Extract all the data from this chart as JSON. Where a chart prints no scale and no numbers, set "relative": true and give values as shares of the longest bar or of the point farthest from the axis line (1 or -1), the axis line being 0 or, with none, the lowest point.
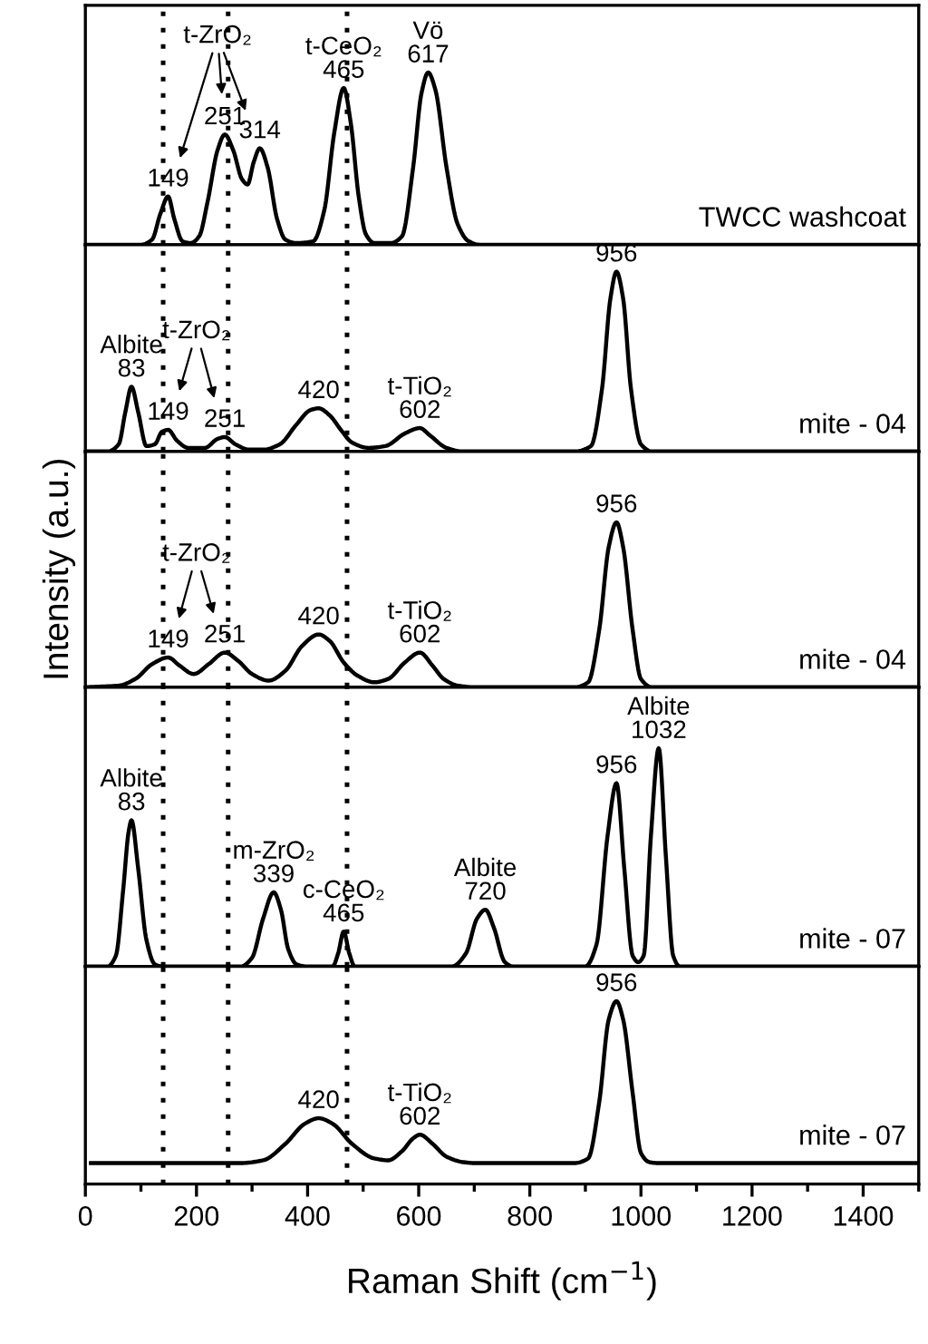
{
  "chart_data": [
    {
      "type": "line",
      "relative": true,
      "xlim": [
        0,
        1500
      ],
      "tick_labels": false,
      "x": [
        0,
        100,
        120,
        135,
        149,
        160,
        175,
        190,
        205,
        220,
        238,
        251,
        266,
        282,
        292,
        303,
        314,
        328,
        345,
        360,
        380,
        410,
        430,
        448,
        465,
        478,
        492,
        505,
        520,
        550,
        570,
        590,
        605,
        617,
        630,
        650,
        670,
        690,
        710,
        800,
        1000,
        1500
      ],
      "series": [
        {
          "name": "TWCC washcoat",
          "color": "#000000",
          "values": [
            0,
            0,
            0.03,
            0.18,
            0.28,
            0.15,
            0.02,
            0.01,
            0.05,
            0.25,
            0.55,
            0.64,
            0.55,
            0.38,
            0.35,
            0.48,
            0.56,
            0.45,
            0.15,
            0.03,
            0.01,
            0.02,
            0.2,
            0.65,
            0.91,
            0.7,
            0.28,
            0.06,
            0.01,
            0.01,
            0.05,
            0.45,
            0.88,
            1.0,
            0.9,
            0.45,
            0.12,
            0.02,
            0,
            0,
            0,
            0
          ]
        }
      ],
      "ref_lines": [
        {
          "axis": "x",
          "value": 140,
          "color": "#000000",
          "line_style": "dotted"
        },
        {
          "axis": "x",
          "value": 257,
          "color": "#000000",
          "line_style": "dotted"
        },
        {
          "axis": "x",
          "value": 471,
          "color": "#000000",
          "line_style": "dotted"
        }
      ],
      "annotations": [
        {
          "text": "149",
          "x": 149,
          "y": 0.28
        },
        {
          "text": "251",
          "x": 251,
          "y": 0.64
        },
        {
          "text": "314",
          "x": 314,
          "y": 0.56
        },
        "t-ZrO₂",
        {
          "text": "t-CeO₂\n465",
          "x": 465,
          "y": 0.91
        },
        {
          "text": "Vö\n617",
          "x": 617,
          "y": 1.0
        }
      ]
    },
    {
      "type": "line",
      "relative": true,
      "xlim": [
        0,
        1500
      ],
      "tick_labels": false,
      "x": [
        0,
        40,
        60,
        72,
        83,
        95,
        110,
        125,
        138,
        149,
        165,
        185,
        215,
        238,
        251,
        270,
        295,
        320,
        350,
        380,
        405,
        420,
        440,
        460,
        480,
        510,
        540,
        575,
        602,
        620,
        650,
        680,
        880,
        910,
        930,
        945,
        956,
        968,
        982,
        1000,
        1020,
        1500
      ],
      "series": [
        {
          "name": "mite - 04",
          "color": "#000000",
          "values": [
            0,
            0,
            0.04,
            0.22,
            0.36,
            0.22,
            0.03,
            0.04,
            0.11,
            0.12,
            0.06,
            0.02,
            0.02,
            0.07,
            0.08,
            0.04,
            0.01,
            0.01,
            0.04,
            0.15,
            0.23,
            0.24,
            0.2,
            0.12,
            0.05,
            0.02,
            0.03,
            0.1,
            0.13,
            0.09,
            0.02,
            0,
            0,
            0.03,
            0.35,
            0.85,
            1.0,
            0.85,
            0.35,
            0.04,
            0,
            0
          ]
        }
      ],
      "ref_lines": [
        {
          "axis": "x",
          "value": 140,
          "color": "#000000",
          "line_style": "dotted"
        },
        {
          "axis": "x",
          "value": 257,
          "color": "#000000",
          "line_style": "dotted"
        },
        {
          "axis": "x",
          "value": 471,
          "color": "#000000",
          "line_style": "dotted"
        }
      ],
      "annotations": [
        {
          "text": "149",
          "x": 149,
          "y": 0.12
        },
        {
          "text": "251",
          "x": 251,
          "y": 0.08
        },
        "t-ZrO₂",
        {
          "text": "Albite\n83",
          "x": 83,
          "y": 0.36
        },
        {
          "text": "420",
          "x": 420,
          "y": 0.24
        },
        {
          "text": "t-TiO₂\n602",
          "x": 602,
          "y": 0.13
        },
        {
          "text": "956",
          "x": 956,
          "y": 1.0
        }
      ]
    },
    {
      "type": "line",
      "relative": true,
      "xlim": [
        0,
        1500
      ],
      "tick_labels": false,
      "ylabel": "Intensity (a.u.)",
      "x": [
        0,
        60,
        90,
        120,
        149,
        170,
        195,
        222,
        251,
        275,
        300,
        330,
        360,
        390,
        420,
        440,
        465,
        490,
        520,
        545,
        575,
        602,
        625,
        645,
        670,
        700,
        880,
        905,
        925,
        942,
        956,
        968,
        985,
        1000,
        1020,
        1500
      ],
      "series": [
        {
          "name": "mite - 04",
          "color": "#000000",
          "values": [
            0,
            0.01,
            0.05,
            0.14,
            0.18,
            0.13,
            0.08,
            0.14,
            0.21,
            0.16,
            0.08,
            0.04,
            0.1,
            0.25,
            0.32,
            0.28,
            0.15,
            0.07,
            0.03,
            0.05,
            0.15,
            0.21,
            0.13,
            0.05,
            0.01,
            0,
            0,
            0.03,
            0.35,
            0.85,
            1.0,
            0.85,
            0.35,
            0.05,
            0,
            0
          ]
        }
      ],
      "ref_lines": [
        {
          "axis": "x",
          "value": 140,
          "color": "#000000",
          "line_style": "dotted"
        },
        {
          "axis": "x",
          "value": 257,
          "color": "#000000",
          "line_style": "dotted"
        },
        {
          "axis": "x",
          "value": 471,
          "color": "#000000",
          "line_style": "dotted"
        }
      ],
      "annotations": [
        {
          "text": "149",
          "x": 149,
          "y": 0.18
        },
        {
          "text": "251",
          "x": 251,
          "y": 0.21
        },
        "t-ZrO₂",
        {
          "text": "420",
          "x": 420,
          "y": 0.32
        },
        {
          "text": "t-TiO₂\n602",
          "x": 602,
          "y": 0.21
        },
        {
          "text": "956",
          "x": 956,
          "y": 1.0
        }
      ]
    },
    {
      "type": "line",
      "relative": true,
      "xlim": [
        0,
        1500
      ],
      "tick_labels": false,
      "x": [
        0,
        40,
        55,
        68,
        78,
        83,
        95,
        110,
        125,
        140,
        280,
        300,
        320,
        339,
        352,
        365,
        380,
        400,
        445,
        455,
        465,
        475,
        485,
        660,
        685,
        705,
        720,
        735,
        755,
        770,
        900,
        920,
        940,
        956,
        970,
        985,
        995,
        1005,
        1018,
        1032,
        1045,
        1058,
        1070,
        1500
      ],
      "series": [
        {
          "name": "mite - 07",
          "color": "#000000",
          "values": [
            0,
            0,
            0.05,
            0.35,
            0.62,
            0.67,
            0.45,
            0.12,
            0.01,
            0,
            0,
            0.04,
            0.22,
            0.34,
            0.26,
            0.08,
            0.01,
            0,
            0,
            0.06,
            0.16,
            0.06,
            0,
            0,
            0.06,
            0.22,
            0.26,
            0.18,
            0.02,
            0,
            0,
            0.1,
            0.6,
            0.84,
            0.45,
            0.05,
            0.02,
            0.05,
            0.6,
            1.0,
            0.5,
            0.05,
            0,
            0
          ]
        }
      ],
      "ref_lines": [
        {
          "axis": "x",
          "value": 140,
          "color": "#000000",
          "line_style": "dotted"
        },
        {
          "axis": "x",
          "value": 257,
          "color": "#000000",
          "line_style": "dotted"
        },
        {
          "axis": "x",
          "value": 471,
          "color": "#000000",
          "line_style": "dotted"
        }
      ],
      "annotations": [
        {
          "text": "Albite\n83",
          "x": 83,
          "y": 0.67
        },
        {
          "text": "m-ZrO₂\n339",
          "x": 339,
          "y": 0.34
        },
        {
          "text": "c-CeO₂\n465",
          "x": 465,
          "y": 0.16
        },
        {
          "text": "Albite\n720",
          "x": 720,
          "y": 0.26
        },
        {
          "text": "956",
          "x": 956,
          "y": 0.84
        },
        {
          "text": "Albite\n1032",
          "x": 1032,
          "y": 1.0
        }
      ]
    },
    {
      "type": "line",
      "relative": true,
      "xlim": [
        0,
        1500
      ],
      "tick_labels": "x",
      "xlabel": "Raman Shift (cm$^{−1}$)",
      "xticks": [
        0,
        {
          "value": 100,
          "label": null
        },
        200,
        {
          "value": 300,
          "label": null
        },
        400,
        {
          "value": 500,
          "label": null
        },
        600,
        {
          "value": 700,
          "label": null
        },
        800,
        {
          "value": 900,
          "label": null
        },
        1000,
        {
          "value": 1100,
          "label": null
        },
        1200,
        {
          "value": 1300,
          "label": null
        },
        1400,
        {
          "value": 1500,
          "label": null
        }
      ],
      "x": [
        10,
        200,
        280,
        320,
        360,
        395,
        420,
        445,
        480,
        520,
        545,
        570,
        590,
        602,
        625,
        650,
        680,
        700,
        880,
        905,
        925,
        942,
        956,
        968,
        985,
        1000,
        1015,
        1030,
        1500
      ],
      "series": [
        {
          "name": "mite - 07",
          "color": "#000000",
          "values": [
            0.115,
            0.115,
            0.115,
            0.13,
            0.22,
            0.33,
            0.36,
            0.33,
            0.22,
            0.14,
            0.13,
            0.18,
            0.25,
            0.27,
            0.22,
            0.15,
            0.12,
            0.115,
            0.115,
            0.14,
            0.45,
            0.9,
            1.0,
            0.9,
            0.5,
            0.17,
            0.12,
            0.115,
            0.115
          ]
        }
      ],
      "ref_lines": [
        {
          "axis": "x",
          "value": 140,
          "color": "#000000",
          "line_style": "dotted"
        },
        {
          "axis": "x",
          "value": 257,
          "color": "#000000",
          "line_style": "dotted"
        },
        {
          "axis": "x",
          "value": 471,
          "color": "#000000",
          "line_style": "dotted"
        }
      ],
      "annotations": [
        {
          "text": "420",
          "x": 420,
          "y": 0.36
        },
        {
          "text": "t-TiO₂\n602",
          "x": 602,
          "y": 0.27
        },
        {
          "text": "956",
          "x": 956,
          "y": 1.0
        }
      ]
    }
  ]
}
